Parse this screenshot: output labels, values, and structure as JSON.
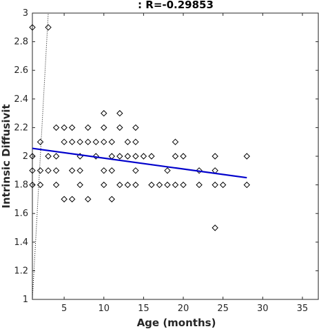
{
  "chart_data": {
    "type": "scatter",
    "title": ": R=-0.29853",
    "xlabel": "Age (months)",
    "ylabel": "Intrinsic Diffusivit",
    "xlim": [
      1,
      37
    ],
    "ylim": [
      1,
      3
    ],
    "xticks": [
      5,
      10,
      15,
      20,
      25,
      30,
      35
    ],
    "yticks": [
      1,
      1.2,
      1.4,
      1.6,
      1.8,
      2,
      2.2,
      2.4,
      2.6,
      2.8,
      3
    ],
    "grid": false,
    "legend": "none",
    "points": [
      [
        1,
        2.9
      ],
      [
        1,
        2.0
      ],
      [
        1,
        1.9
      ],
      [
        1,
        1.8
      ],
      [
        2,
        2.1
      ],
      [
        2,
        1.9
      ],
      [
        2,
        1.8
      ],
      [
        3,
        2.9
      ],
      [
        3,
        2.0
      ],
      [
        3,
        1.9
      ],
      [
        4,
        2.2
      ],
      [
        4,
        2.0
      ],
      [
        4,
        1.9
      ],
      [
        4,
        1.8
      ],
      [
        5,
        2.2
      ],
      [
        5,
        2.1
      ],
      [
        5,
        1.7
      ],
      [
        6,
        2.2
      ],
      [
        6,
        2.1
      ],
      [
        6,
        1.9
      ],
      [
        6,
        1.7
      ],
      [
        7,
        2.1
      ],
      [
        7,
        2.0
      ],
      [
        7,
        1.9
      ],
      [
        7,
        1.8
      ],
      [
        8,
        2.2
      ],
      [
        8,
        2.1
      ],
      [
        8,
        1.7
      ],
      [
        9,
        2.1
      ],
      [
        9,
        2.0
      ],
      [
        10,
        2.3
      ],
      [
        10,
        2.2
      ],
      [
        10,
        2.1
      ],
      [
        10,
        1.9
      ],
      [
        10,
        1.8
      ],
      [
        11,
        2.1
      ],
      [
        11,
        2.0
      ],
      [
        11,
        1.9
      ],
      [
        11,
        1.7
      ],
      [
        12,
        2.3
      ],
      [
        12,
        2.2
      ],
      [
        12,
        2.0
      ],
      [
        12,
        1.8
      ],
      [
        13,
        2.1
      ],
      [
        13,
        2.0
      ],
      [
        13,
        1.8
      ],
      [
        14,
        2.2
      ],
      [
        14,
        2.1
      ],
      [
        14,
        2.0
      ],
      [
        14,
        1.9
      ],
      [
        14,
        1.8
      ],
      [
        15,
        2.0
      ],
      [
        16,
        2.0
      ],
      [
        16,
        1.8
      ],
      [
        17,
        1.8
      ],
      [
        18,
        1.9
      ],
      [
        18,
        1.8
      ],
      [
        19,
        2.1
      ],
      [
        19,
        2.0
      ],
      [
        19,
        1.8
      ],
      [
        20,
        2.0
      ],
      [
        20,
        1.8
      ],
      [
        22,
        1.9
      ],
      [
        22,
        1.8
      ],
      [
        24,
        2.0
      ],
      [
        24,
        1.9
      ],
      [
        24,
        1.8
      ],
      [
        24,
        1.5
      ],
      [
        25,
        1.8
      ],
      [
        28,
        2.0
      ],
      [
        28,
        1.8
      ]
    ],
    "fit_line": {
      "x": [
        1,
        28
      ],
      "y": [
        2.055,
        1.85
      ],
      "color": "#0000cc"
    },
    "ci_line": {
      "x": [
        1,
        3
      ],
      "y": [
        1.0,
        3.0
      ],
      "color": "#000000"
    }
  }
}
